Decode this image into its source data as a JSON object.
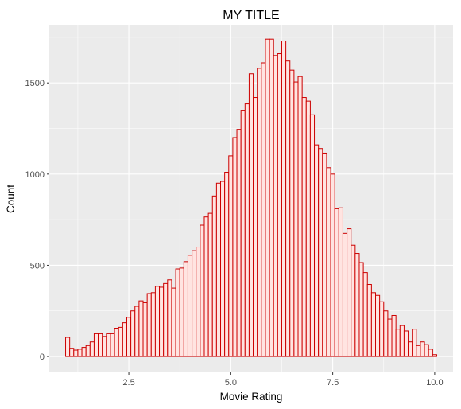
{
  "chart_data": {
    "type": "bar",
    "title": "MY TITLE",
    "xlabel": "Movie Rating",
    "ylabel": "Count",
    "xlim": [
      0.55,
      10.45
    ],
    "ylim": [
      -87,
      1815
    ],
    "x_ticks": [
      2.5,
      5.0,
      7.5,
      10.0
    ],
    "x_tick_labels": [
      "2.5",
      "5.0",
      "7.5",
      "10.0"
    ],
    "y_ticks": [
      0,
      500,
      1000,
      1500
    ],
    "y_tick_labels": [
      "0",
      "500",
      "1000",
      "1500"
    ],
    "grid": true,
    "legend": "none",
    "bin_width": 0.1,
    "bin_starts": [
      0.95,
      1.05,
      1.15,
      1.25,
      1.35,
      1.45,
      1.55,
      1.65,
      1.75,
      1.85,
      1.95,
      2.05,
      2.15,
      2.25,
      2.35,
      2.45,
      2.55,
      2.65,
      2.75,
      2.85,
      2.95,
      3.05,
      3.15,
      3.25,
      3.35,
      3.45,
      3.55,
      3.65,
      3.75,
      3.85,
      3.95,
      4.05,
      4.15,
      4.25,
      4.35,
      4.45,
      4.55,
      4.65,
      4.75,
      4.85,
      4.95,
      5.05,
      5.15,
      5.25,
      5.35,
      5.45,
      5.55,
      5.65,
      5.75,
      5.85,
      5.95,
      6.05,
      6.15,
      6.25,
      6.35,
      6.45,
      6.55,
      6.65,
      6.75,
      6.85,
      6.95,
      7.05,
      7.15,
      7.25,
      7.35,
      7.45,
      7.55,
      7.65,
      7.75,
      7.85,
      7.95,
      8.05,
      8.15,
      8.25,
      8.35,
      8.45,
      8.55,
      8.65,
      8.75,
      8.85,
      8.95,
      9.05,
      9.15,
      9.25,
      9.35,
      9.45,
      9.55,
      9.65,
      9.75,
      9.85,
      9.95
    ],
    "counts": [
      105,
      45,
      35,
      40,
      50,
      60,
      80,
      125,
      125,
      110,
      125,
      125,
      155,
      160,
      185,
      215,
      250,
      275,
      305,
      295,
      345,
      350,
      385,
      380,
      400,
      420,
      375,
      480,
      485,
      520,
      555,
      580,
      600,
      720,
      765,
      785,
      880,
      950,
      960,
      1010,
      1100,
      1200,
      1245,
      1350,
      1385,
      1550,
      1420,
      1580,
      1610,
      1740,
      1740,
      1650,
      1660,
      1730,
      1620,
      1570,
      1505,
      1535,
      1420,
      1400,
      1325,
      1160,
      1140,
      1115,
      1035,
      1000,
      810,
      815,
      675,
      700,
      610,
      565,
      515,
      460,
      395,
      350,
      335,
      300,
      250,
      205,
      225,
      150,
      170,
      140,
      80,
      150,
      60,
      80,
      65,
      40,
      10
    ],
    "fill_color": "#ffe4e1",
    "stroke_color": "#cc0000",
    "panel_color": "#ebebeb",
    "grid_color": "#ffffff"
  }
}
